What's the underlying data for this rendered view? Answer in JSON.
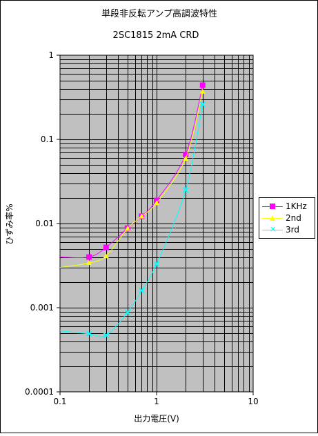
{
  "chart_data": {
    "type": "line",
    "title": "単段非反転アンプ高調波特性",
    "subtitle": "2SC1815 2mA CRD",
    "xlabel": "出力電圧(V)",
    "ylabel": "ひずみ率%",
    "x_scale": "log",
    "y_scale": "log",
    "xlim": [
      0.1,
      10
    ],
    "ylim": [
      0.0001,
      1
    ],
    "x_ticks": [
      "0.1",
      "1",
      "10"
    ],
    "y_ticks": [
      "0.0001",
      "0.001",
      "0.01",
      "0.1",
      "1"
    ],
    "grid": true,
    "legend_position": "right",
    "background_color": "#c0c0c0",
    "series": [
      {
        "name": "1KHz",
        "color": "#ff00ff",
        "marker": "square",
        "x": [
          0.1,
          0.2,
          0.3,
          0.5,
          0.7,
          1.0,
          2.0,
          3.0
        ],
        "y": [
          0.004,
          0.004,
          0.0052,
          0.0088,
          0.0122,
          0.0188,
          0.066,
          0.44
        ]
      },
      {
        "name": "2nd",
        "color": "#ffff00",
        "marker": "triangle",
        "x": [
          0.1,
          0.2,
          0.3,
          0.5,
          0.7,
          1.0,
          2.0,
          3.0
        ],
        "y": [
          0.003,
          0.0034,
          0.0041,
          0.0087,
          0.0122,
          0.0175,
          0.059,
          0.37
        ]
      },
      {
        "name": "3rd",
        "color": "#00ffff",
        "marker": "x",
        "x": [
          0.1,
          0.2,
          0.3,
          0.5,
          0.7,
          1.0,
          2.0,
          3.0
        ],
        "y": [
          0.00053,
          0.00049,
          0.00047,
          0.00088,
          0.0016,
          0.0033,
          0.025,
          0.26
        ]
      }
    ]
  }
}
